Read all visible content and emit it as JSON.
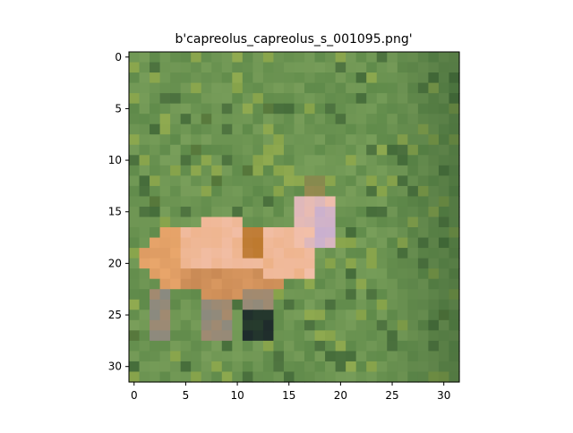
{
  "chart_data": {
    "type": "heatmap",
    "title": "b'capreolus_capreolus_s_001095.png'",
    "xlabel": "",
    "ylabel": "",
    "xlim": [
      -0.5,
      31.5
    ],
    "ylim": [
      31.5,
      -0.5
    ],
    "xticks": [
      0,
      5,
      10,
      15,
      20,
      25,
      30
    ],
    "yticks": [
      0,
      5,
      10,
      15,
      20,
      25,
      30
    ],
    "grid": false,
    "image_size": [
      32,
      32
    ],
    "palette": {
      "grass_light": "#7fa35e",
      "grass_mid": "#5f8a4a",
      "grass_dark": "#355a30",
      "grass_yellow": "#9fb24a",
      "deer_orange": "#e9a66b",
      "deer_pink": "#f2bfa8",
      "deer_tan": "#c98a55",
      "deer_lilac": "#c9b0d0",
      "shadow_dark": "#1e2a2c",
      "hoof_grey": "#8a8a80"
    }
  }
}
